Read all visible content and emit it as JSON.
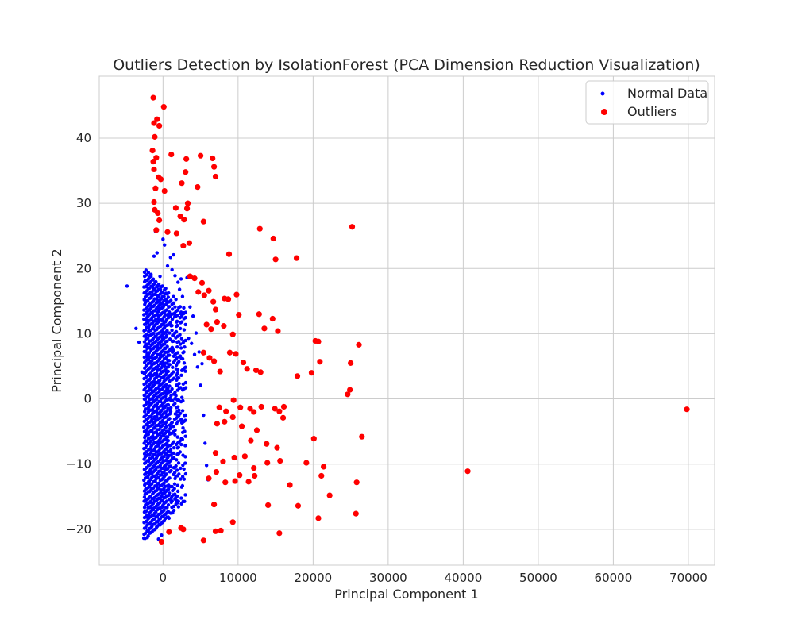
{
  "chart_data": {
    "type": "scatter",
    "title": "Outliers Detection by IsolationForest (PCA Dimension Reduction Visualization)",
    "xlabel": "Principal Component 1",
    "ylabel": "Principal Component 2",
    "xlim": [
      -8500,
      73500
    ],
    "ylim": [
      -25.5,
      49.5
    ],
    "xticks": [
      0,
      10000,
      20000,
      30000,
      40000,
      50000,
      60000,
      70000
    ],
    "xtick_labels": [
      "0",
      "10000",
      "20000",
      "30000",
      "40000",
      "50000",
      "60000",
      "70000"
    ],
    "yticks": [
      -20,
      -10,
      0,
      10,
      20,
      30,
      40
    ],
    "ytick_labels": [
      "−20",
      "−10",
      "0",
      "10",
      "20",
      "30",
      "40"
    ],
    "grid": true,
    "legend_position": "top-right",
    "series": [
      {
        "name": "Normal Data",
        "color": "#0000ff",
        "marker": "small-dot",
        "x": [
          -4800,
          -3600,
          -3200,
          -2800,
          -2500,
          -2200,
          -2000,
          -1800,
          -1600,
          -1400,
          -1200,
          -1000,
          -800,
          -600,
          -400,
          -200,
          0,
          200,
          400,
          600,
          800,
          1000,
          1200,
          1400,
          1600,
          1800,
          2000,
          2200,
          2400,
          2600,
          2800,
          3000,
          3200,
          3400,
          3600,
          3800,
          4000,
          4200,
          4400,
          4600,
          4800,
          5000,
          5200,
          5400,
          5600,
          5800,
          6000
        ],
        "y": [
          17.3,
          10.8,
          8.7,
          4.1,
          15.2,
          12.1,
          6.3,
          -13.5,
          19.1,
          -16.8,
          21.9,
          25.7,
          22.4,
          -21.5,
          18.8,
          -20.9,
          24.5,
          23.6,
          16.2,
          20.4,
          -18.3,
          21.7,
          19.8,
          22.1,
          18.9,
          -15.6,
          17.9,
          16.8,
          18.4,
          15.7,
          13.2,
          11.4,
          18.6,
          9.3,
          14.1,
          8.5,
          12.7,
          6.8,
          10.1,
          4.9,
          7.2,
          2.1,
          5.4,
          -2.5,
          -6.8,
          -10.2,
          -12.4
        ],
        "dense_region": {
          "x_range": [
            -2500,
            3000
          ],
          "y_range": [
            -21.5,
            20
          ],
          "note": "dense vertical band of normal points"
        }
      },
      {
        "name": "Outliers",
        "color": "#ff0000",
        "marker": "dot",
        "x": [
          -1300,
          100,
          -1200,
          -800,
          -500,
          -1100,
          -1400,
          -900,
          -1300,
          -1200,
          -600,
          -300,
          200,
          -1000,
          -1200,
          -1100,
          -700,
          -500,
          -900,
          600,
          1100,
          3100,
          3000,
          2500,
          1700,
          2300,
          2800,
          1800,
          3500,
          2700,
          3200,
          3300,
          4600,
          5000,
          6600,
          6800,
          7000,
          5400,
          8800,
          12900,
          14700,
          15000,
          17800,
          25200,
          3600,
          4200,
          4700,
          5200,
          5500,
          6100,
          6700,
          7000,
          8200,
          8700,
          9800,
          5800,
          6400,
          7200,
          8100,
          9300,
          10100,
          12800,
          13500,
          14600,
          15300,
          20300,
          20700,
          26100,
          5400,
          6200,
          6800,
          7600,
          8900,
          9700,
          10700,
          11200,
          12400,
          13000,
          17900,
          19800,
          20900,
          25000,
          24600,
          24900,
          7500,
          8400,
          9400,
          10300,
          11600,
          12100,
          13100,
          14900,
          15500,
          16000,
          16100,
          7200,
          8200,
          9300,
          10500,
          11700,
          12500,
          13800,
          15200,
          19100,
          20100,
          21400,
          26500,
          7000,
          8000,
          9500,
          10900,
          12100,
          13900,
          15600,
          16900,
          21100,
          22200,
          25800,
          6100,
          7100,
          8300,
          9600,
          10200,
          11400,
          12200,
          14000,
          18000,
          20700,
          25700,
          6800,
          7700,
          9300,
          15500,
          40600,
          69800,
          -200,
          800,
          2400,
          2700,
          5400,
          7000
        ],
        "y": [
          46.2,
          44.8,
          42.3,
          42.9,
          41.9,
          40.2,
          38.1,
          37.0,
          36.4,
          35.2,
          34.0,
          33.7,
          31.9,
          32.3,
          30.2,
          29.0,
          28.5,
          27.4,
          25.9,
          25.6,
          37.5,
          36.8,
          34.8,
          33.1,
          29.3,
          28.0,
          27.5,
          25.4,
          23.9,
          23.5,
          29.2,
          30.0,
          32.5,
          37.3,
          36.9,
          35.6,
          34.1,
          27.2,
          22.2,
          26.1,
          24.6,
          21.4,
          21.6,
          26.4,
          18.8,
          18.5,
          16.4,
          17.8,
          15.9,
          16.6,
          14.9,
          13.7,
          15.4,
          15.3,
          16.0,
          11.4,
          10.7,
          11.8,
          11.2,
          9.9,
          12.9,
          13.0,
          10.8,
          12.3,
          10.4,
          8.9,
          8.8,
          8.3,
          7.1,
          6.3,
          5.8,
          4.2,
          7.1,
          6.9,
          5.6,
          4.6,
          4.4,
          4.1,
          3.5,
          4.0,
          5.7,
          5.5,
          0.7,
          1.4,
          -1.3,
          -1.9,
          -0.2,
          -1.3,
          -1.5,
          -2.0,
          -1.2,
          -1.5,
          -1.9,
          -2.9,
          -1.2,
          -3.8,
          -3.5,
          -2.8,
          -4.2,
          -6.4,
          -4.8,
          -6.9,
          -7.5,
          -9.8,
          -6.1,
          -10.4,
          -5.8,
          -8.3,
          -9.6,
          -9.0,
          -8.8,
          -10.6,
          -9.8,
          -9.5,
          -13.2,
          -11.8,
          -14.8,
          -12.8,
          -12.2,
          -11.2,
          -12.8,
          -12.6,
          -11.7,
          -12.7,
          -11.8,
          -16.3,
          -16.4,
          -18.3,
          -17.6,
          -16.2,
          -20.2,
          -18.9,
          -20.6,
          -11.1,
          -1.6,
          -21.9,
          -20.4,
          -19.8,
          -20.0,
          -21.7,
          -20.3
        ]
      }
    ]
  }
}
